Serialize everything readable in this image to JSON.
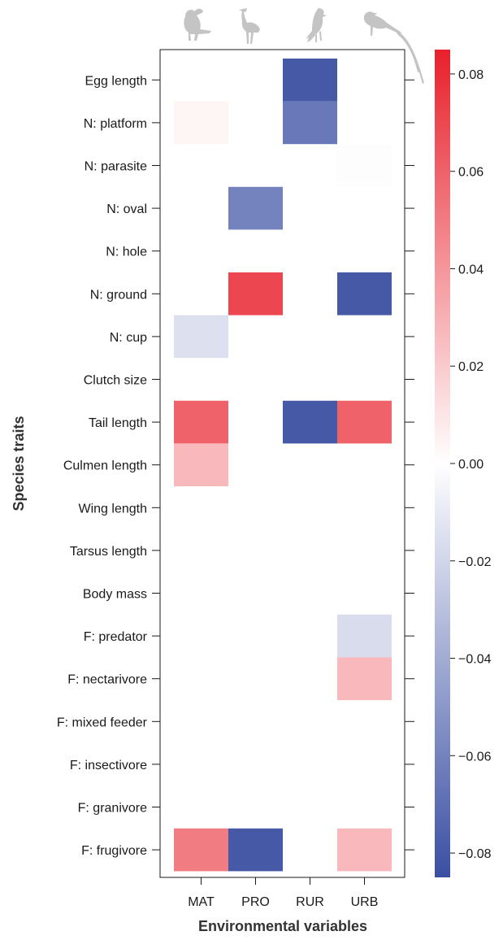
{
  "chart_data": {
    "type": "heatmap",
    "x_categories": [
      "MAT",
      "PRO",
      "RUR",
      "URB"
    ],
    "y_categories": [
      "Egg length",
      "N: platform",
      "N: parasite",
      "N: oval",
      "N: hole",
      "N: ground",
      "N: cup",
      "Clutch size",
      "Tail length",
      "Culmen length",
      "Wing length",
      "Tarsus length",
      "Body mass",
      "F: predator",
      "F: nectarivore",
      "F: mixed feeder",
      "F: insectivore",
      "F: granivore",
      "F: frugivore"
    ],
    "xlabel": "Environmental variables",
    "ylabel": "Species traits",
    "values": [
      [
        null,
        null,
        -0.08,
        null
      ],
      [
        0.004,
        null,
        -0.065,
        null
      ],
      [
        null,
        null,
        null,
        -0.001
      ],
      [
        null,
        -0.06,
        null,
        null
      ],
      [
        null,
        null,
        null,
        null
      ],
      [
        null,
        0.07,
        null,
        -0.08
      ],
      [
        -0.015,
        null,
        null,
        null
      ],
      [
        null,
        null,
        null,
        null
      ],
      [
        0.06,
        null,
        -0.08,
        0.06
      ],
      [
        0.027,
        null,
        null,
        null
      ],
      [
        null,
        null,
        null,
        null
      ],
      [
        null,
        null,
        null,
        null
      ],
      [
        null,
        null,
        null,
        null
      ],
      [
        null,
        null,
        null,
        -0.017
      ],
      [
        null,
        null,
        null,
        0.027
      ],
      [
        null,
        null,
        null,
        null
      ],
      [
        null,
        null,
        null,
        null
      ],
      [
        null,
        null,
        null,
        null
      ],
      [
        0.05,
        -0.08,
        null,
        0.027
      ]
    ],
    "colorbar": {
      "min": -0.085,
      "max": 0.085,
      "ticks": [
        0.08,
        0.06,
        0.04,
        0.02,
        0.0,
        -0.02,
        -0.04,
        -0.06,
        -0.08
      ],
      "tick_labels": [
        "0.08",
        "0.06",
        "0.04",
        "0.02",
        "0.00",
        "−0.02",
        "−0.04",
        "−0.06",
        "−0.08"
      ],
      "colors": {
        "negative": "#3a4fa2",
        "zero": "#ffffff",
        "positive": "#e8202b"
      }
    },
    "column_icons": [
      "hornbill-icon",
      "stork-icon",
      "perching-bird-icon",
      "long-tailed-bird-icon"
    ],
    "grid": false
  }
}
